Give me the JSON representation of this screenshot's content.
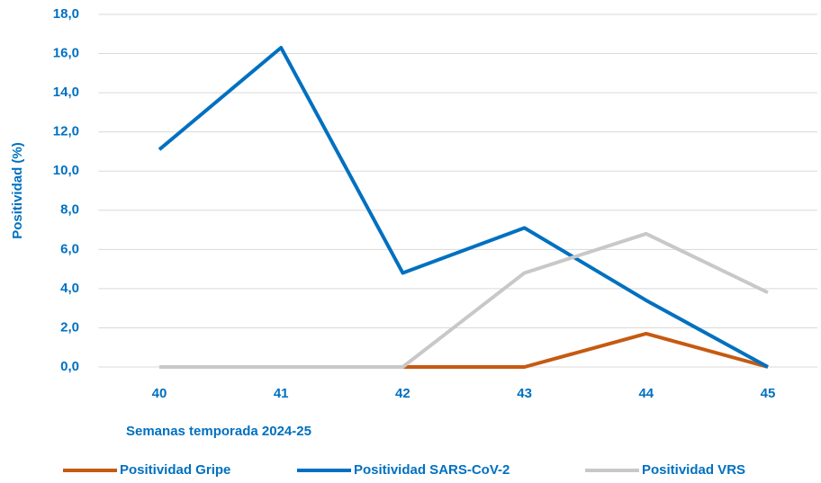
{
  "chart_data": {
    "type": "line",
    "categories": [
      "40",
      "41",
      "42",
      "43",
      "44",
      "45"
    ],
    "series": [
      {
        "name": "Positividad Gripe",
        "color": "#c55a11",
        "values": [
          0,
          0,
          0,
          0,
          1.7,
          0
        ]
      },
      {
        "name": "Positividad SARS-CoV-2",
        "color": "#0070c0",
        "values": [
          11.1,
          16.3,
          4.8,
          7.1,
          3.4,
          0
        ]
      },
      {
        "name": "Positividad VRS",
        "color": "#c8c8c8",
        "values": [
          0,
          0,
          0,
          4.8,
          6.8,
          3.8
        ]
      }
    ],
    "xlabel": "Semanas temporada 2024-25",
    "ylabel": "Positividad (%)",
    "ylim": [
      0,
      18
    ],
    "yticks": [
      {
        "value": 0,
        "label": "0,0"
      },
      {
        "value": 2,
        "label": "2,0"
      },
      {
        "value": 4,
        "label": "4,0"
      },
      {
        "value": 6,
        "label": "6,0"
      },
      {
        "value": 8,
        "label": "8,0"
      },
      {
        "value": 10,
        "label": "10,0"
      },
      {
        "value": 12,
        "label": "12,0"
      },
      {
        "value": 14,
        "label": "14,0"
      },
      {
        "value": 16,
        "label": "16,0"
      },
      {
        "value": 18,
        "label": "18,0"
      }
    ],
    "grid": true,
    "legend": "bottom"
  }
}
